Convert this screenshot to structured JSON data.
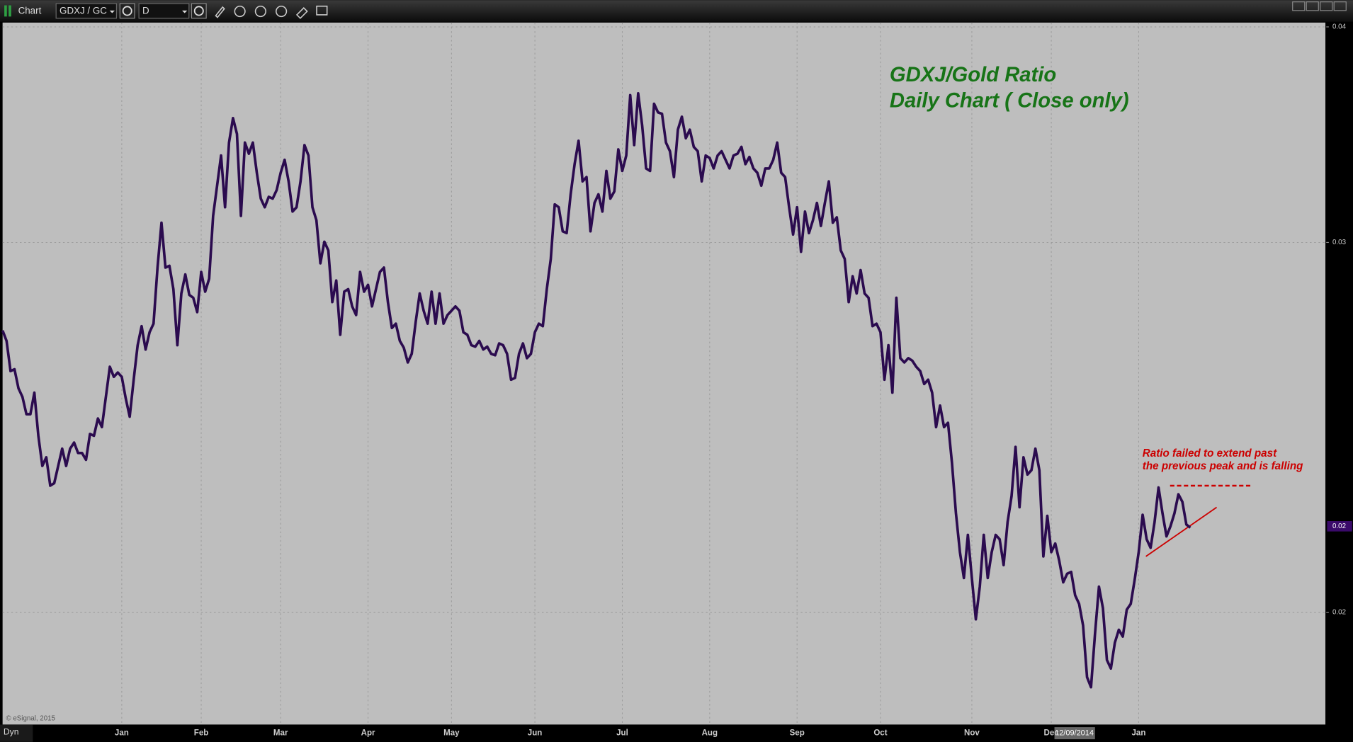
{
  "toolbar": {
    "window_title": "Chart",
    "symbol": "GDXJ / GC",
    "interval": "D"
  },
  "footer": {
    "mode": "Dyn",
    "copyright": "© eSignal, 2015",
    "cursor_date": "12/09/2014"
  },
  "chart_data": {
    "type": "line",
    "title": "GDXJ/Gold Ratio",
    "subtitle": "Daily Chart ( Close only)",
    "annotation": [
      "Ratio failed to extend past",
      "the previous peak and is falling"
    ],
    "color": "#2b0b4f",
    "grid": true,
    "xlim": [
      0,
      333
    ],
    "xticks": [
      {
        "value": 30,
        "label": "Jan"
      },
      {
        "value": 50,
        "label": "Feb"
      },
      {
        "value": 70,
        "label": "Mar"
      },
      {
        "value": 92,
        "label": "Apr"
      },
      {
        "value": 113,
        "label": "May"
      },
      {
        "value": 134,
        "label": "Jun"
      },
      {
        "value": 156,
        "label": "Jul"
      },
      {
        "value": 178,
        "label": "Aug"
      },
      {
        "value": 200,
        "label": "Sep"
      },
      {
        "value": 221,
        "label": "Oct"
      },
      {
        "value": 244,
        "label": "Nov"
      },
      {
        "value": 264,
        "label": "Dec"
      },
      {
        "value": 286,
        "label": "Jan"
      }
    ],
    "ylim": [
      0.01658,
      0.03612
    ],
    "yticks": [
      {
        "value": 0.036,
        "label": "0.04"
      },
      0.03,
      {
        "value": 0.0197,
        "label": "0.02"
      }
    ],
    "last_value": {
      "value": 0.0221,
      "label": "0.02"
    },
    "values": [
      0.02755,
      0.02726,
      0.02642,
      0.02647,
      0.02594,
      0.0257,
      0.02522,
      0.02522,
      0.02582,
      0.02462,
      0.02378,
      0.02402,
      0.02323,
      0.0233,
      0.02378,
      0.02426,
      0.02378,
      0.02426,
      0.02443,
      0.02414,
      0.02414,
      0.02395,
      0.02467,
      0.02462,
      0.0251,
      0.02486,
      0.0257,
      0.02654,
      0.02626,
      0.02638,
      0.02626,
      0.02566,
      0.02515,
      0.02618,
      0.02714,
      0.02767,
      0.02702,
      0.0275,
      0.02774,
      0.0293,
      0.03055,
      0.0293,
      0.02935,
      0.0287,
      0.02714,
      0.02858,
      0.02911,
      0.02854,
      0.02846,
      0.02806,
      0.02918,
      0.02863,
      0.02899,
      0.03074,
      0.03158,
      0.03242,
      0.03098,
      0.03278,
      0.03346,
      0.03302,
      0.03074,
      0.03278,
      0.03247,
      0.03278,
      0.03194,
      0.03122,
      0.03098,
      0.03127,
      0.03122,
      0.03146,
      0.03194,
      0.0323,
      0.0317,
      0.03086,
      0.03098,
      0.0317,
      0.03271,
      0.03242,
      0.03098,
      0.03062,
      0.02942,
      0.03002,
      0.02978,
      0.02834,
      0.02894,
      0.02743,
      0.02863,
      0.0287,
      0.02822,
      0.02798,
      0.02918,
      0.02863,
      0.02882,
      0.02822,
      0.0287,
      0.02918,
      0.0293,
      0.02834,
      0.02762,
      0.02774,
      0.02726,
      0.02707,
      0.02666,
      0.0269,
      0.02779,
      0.02858,
      0.0281,
      0.02774,
      0.02863,
      0.02774,
      0.02858,
      0.02774,
      0.02798,
      0.0281,
      0.02822,
      0.0281,
      0.0275,
      0.02743,
      0.02714,
      0.0271,
      0.02726,
      0.02702,
      0.0271,
      0.0269,
      0.02686,
      0.02719,
      0.02714,
      0.0269,
      0.02618,
      0.02623,
      0.0269,
      0.02719,
      0.02678,
      0.0269,
      0.0275,
      0.02774,
      0.02767,
      0.0287,
      0.02954,
      0.03106,
      0.03098,
      0.03031,
      0.03026,
      0.03134,
      0.03218,
      0.03283,
      0.0317,
      0.03182,
      0.03031,
      0.0311,
      0.03134,
      0.03086,
      0.03199,
      0.03122,
      0.03142,
      0.03259,
      0.03199,
      0.03242,
      0.0341,
      0.03271,
      0.03415,
      0.03326,
      0.03206,
      0.03199,
      0.03386,
      0.03362,
      0.03358,
      0.03278,
      0.03254,
      0.03182,
      0.03314,
      0.0335,
      0.0329,
      0.03314,
      0.03266,
      0.03254,
      0.0317,
      0.03242,
      0.03235,
      0.03206,
      0.03242,
      0.03254,
      0.0323,
      0.03206,
      0.03242,
      0.03247,
      0.03266,
      0.03218,
      0.03238,
      0.03206,
      0.03194,
      0.03158,
      0.03206,
      0.03206,
      0.0323,
      0.03278,
      0.03194,
      0.03182,
      0.03098,
      0.03022,
      0.03098,
      0.02974,
      0.03086,
      0.03026,
      0.03062,
      0.0311,
      0.03046,
      0.0311,
      0.0317,
      0.03055,
      0.0307,
      0.02978,
      0.02954,
      0.02834,
      0.02906,
      0.02858,
      0.02923,
      0.02858,
      0.02846,
      0.02767,
      0.02774,
      0.0275,
      0.02618,
      0.02714,
      0.02582,
      0.02846,
      0.02678,
      0.02666,
      0.02678,
      0.02671,
      0.02654,
      0.02642,
      0.02606,
      0.02618,
      0.02582,
      0.02486,
      0.02546,
      0.02486,
      0.02498,
      0.02386,
      0.02246,
      0.02138,
      0.02066,
      0.02186,
      0.02066,
      0.01951,
      0.02042,
      0.02186,
      0.02066,
      0.02138,
      0.02186,
      0.02174,
      0.02102,
      0.02222,
      0.02294,
      0.02431,
      0.02263,
      0.02402,
      0.02354,
      0.02366,
      0.02426,
      0.02366,
      0.02126,
      0.02239,
      0.02138,
      0.02162,
      0.02114,
      0.02054,
      0.02078,
      0.02083,
      0.02018,
      0.01994,
      0.01934,
      0.0179,
      0.01762,
      0.0191,
      0.02042,
      0.01982,
      0.01838,
      0.01814,
      0.01886,
      0.01922,
      0.01903,
      0.01978,
      0.01994,
      0.02062,
      0.02138,
      0.02242,
      0.02174,
      0.0215,
      0.02222,
      0.02318,
      0.02246,
      0.02182,
      0.0221,
      0.02246,
      0.02299,
      0.02278,
      0.02215,
      0.02206
    ]
  }
}
